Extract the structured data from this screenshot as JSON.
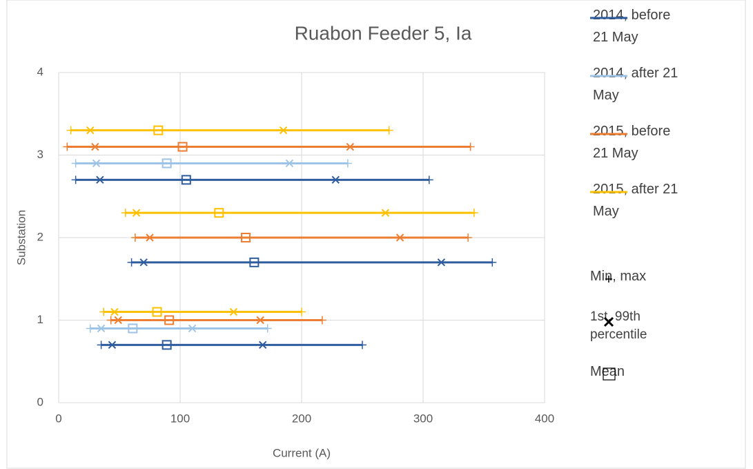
{
  "chart_data": {
    "type": "range_scatter",
    "title": "Ruabon Feeder 5, Ia",
    "x_label": "Current (A)",
    "y_label": "Substation",
    "xlim": [
      0,
      400
    ],
    "xticks": [
      0,
      100,
      200,
      300,
      400
    ],
    "ylim": [
      0,
      4
    ],
    "yticks": [
      0,
      1,
      2,
      3,
      4
    ],
    "grid": true,
    "legend": "right",
    "marker_legend": [
      "Min, max",
      "1st, 99th percentile",
      "Mean"
    ],
    "series": [
      {
        "name": "2014, before 21 May",
        "color": "#2e5c9e",
        "y": [
          0.7,
          1.7,
          2.7
        ],
        "min": [
          35,
          60,
          14
        ],
        "p1": [
          44,
          70,
          34
        ],
        "mean": [
          89,
          161,
          105
        ],
        "p99": [
          168,
          315,
          228
        ],
        "max": [
          250,
          357,
          305
        ]
      },
      {
        "name": "2014, after 21 May",
        "color": "#9dc3e6",
        "y": [
          0.9,
          2.9
        ],
        "min": [
          26,
          14
        ],
        "p1": [
          35,
          31
        ],
        "mean": [
          61,
          89
        ],
        "p99": [
          110,
          190
        ],
        "max": [
          172,
          238
        ]
      },
      {
        "name": "2015, before 21 May",
        "color": "#ed7d31",
        "y": [
          1.0,
          2.0,
          3.1
        ],
        "min": [
          43,
          63,
          7
        ],
        "p1": [
          49,
          75,
          30
        ],
        "mean": [
          91,
          154,
          102
        ],
        "p99": [
          166,
          281,
          240
        ],
        "max": [
          217,
          337,
          339
        ]
      },
      {
        "name": "2015, after 21 May",
        "color": "#ffc000",
        "y": [
          1.1,
          2.3,
          3.3
        ],
        "min": [
          37,
          55,
          10
        ],
        "p1": [
          46,
          64,
          26
        ],
        "mean": [
          81,
          132,
          82
        ],
        "p99": [
          144,
          269,
          185
        ],
        "max": [
          200,
          342,
          272
        ]
      }
    ]
  }
}
